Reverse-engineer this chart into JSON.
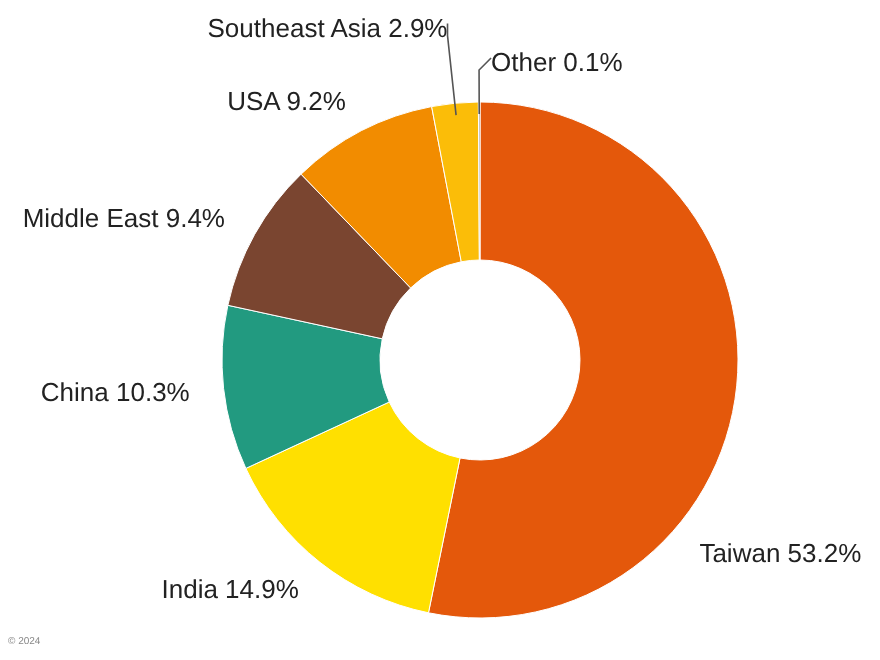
{
  "chart_data": {
    "type": "donut",
    "categories": [
      "Taiwan",
      "India",
      "China",
      "Middle East",
      "USA",
      "Southeast Asia",
      "Other"
    ],
    "values": [
      53.2,
      14.9,
      10.3,
      9.4,
      9.2,
      2.9,
      0.1
    ],
    "value_labels": [
      "53.2%",
      "14.9%",
      "10.3%",
      "9.4%",
      "9.2%",
      "2.9%",
      "0.1%"
    ],
    "colors": [
      "#e4580b",
      "#ffe000",
      "#229a80",
      "#7a4530",
      "#f28c00",
      "#fbbd08",
      "#8a8a8a"
    ],
    "annotations": [
      "© 2024"
    ]
  }
}
